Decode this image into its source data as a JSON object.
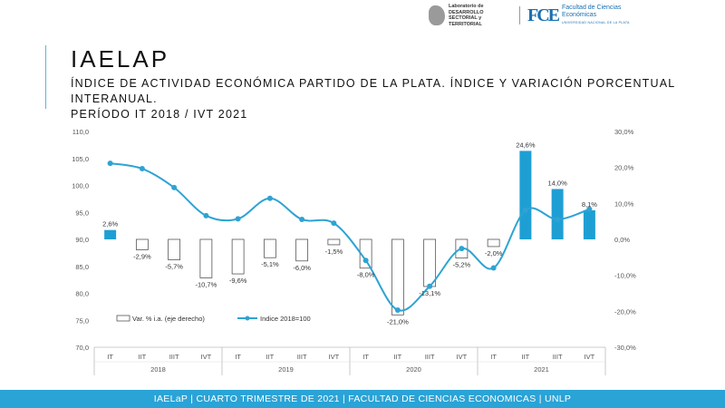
{
  "header": {
    "lab_name": "Laboratorio de DESARROLLO SECTORIAL y TERRITORIAL",
    "fce_mark": "FCE",
    "fce_name": "Facultad de Ciencias Económicas",
    "fce_university": "UNIVERSIDAD NACIONAL DE LA PLATA"
  },
  "title": "IAELAP",
  "subtitle_line1": "ÍNDICE DE ACTIVIDAD ECONÓMICA PARTIDO DE LA PLATA. ÍNDICE Y VARIACIÓN PORCENTUAL INTERANUAL.",
  "subtitle_line2": "PERÍODO IT 2018 / IVT 2021",
  "footer": "IAELaP | CUARTO TRIMESTRE DE 2021 | FACULTAD DE CIENCIAS ECONOMICAS | UNLP",
  "colors": {
    "accent": "#2aa3d6",
    "filled_bar": "#1e9fd4",
    "line": "#2ea3d3",
    "hollow_bar_stroke": "#555555"
  },
  "chart_data": {
    "type": "bar",
    "categories": [
      "IT",
      "IIT",
      "IIIT",
      "IVT",
      "IT",
      "IIT",
      "IIIT",
      "IVT",
      "IT",
      "IIT",
      "IIIT",
      "IVT",
      "IT",
      "IIT",
      "IIIT",
      "IVT"
    ],
    "years": [
      "2018",
      "2019",
      "2020",
      "2021"
    ],
    "series": [
      {
        "name": "Var. % i.a. (eje derecho)",
        "axis": "right",
        "values": [
          2.6,
          -2.9,
          -5.7,
          -10.7,
          -9.6,
          -5.1,
          -6.0,
          -1.5,
          -8.0,
          -21.0,
          -13.1,
          -5.2,
          -2.0,
          24.6,
          14.0,
          8.1
        ],
        "labels": [
          "2,6%",
          "-2,9%",
          "-5,7%",
          "-10,7%",
          "-9,6%",
          "-5,1%",
          "-6,0%",
          "-1,5%",
          "-8,0%",
          "-21,0%",
          "-13,1%",
          "-5,2%",
          "-2,0%",
          "24,6%",
          "14,0%",
          "8,1%"
        ]
      },
      {
        "name": "Indice 2018=100",
        "axis": "left",
        "type": "line",
        "values": [
          104.1,
          103.1,
          99.6,
          94.4,
          93.8,
          97.6,
          93.7,
          93.0,
          86.1,
          76.9,
          81.3,
          88.3,
          84.7,
          95.4,
          93.7,
          95.6
        ]
      }
    ],
    "ylim_left": [
      70,
      110
    ],
    "yticks_left": [
      "70,0",
      "75,0",
      "80,0",
      "85,0",
      "90,0",
      "95,0",
      "100,0",
      "105,0",
      "110,0"
    ],
    "ylim_right": [
      -30,
      30
    ],
    "yticks_right": [
      "-30,0%",
      "-20,0%",
      "-10,0%",
      "0,0%",
      "10,0%",
      "20,0%",
      "30,0%"
    ],
    "grid": false,
    "legend_position": "bottom-left"
  }
}
